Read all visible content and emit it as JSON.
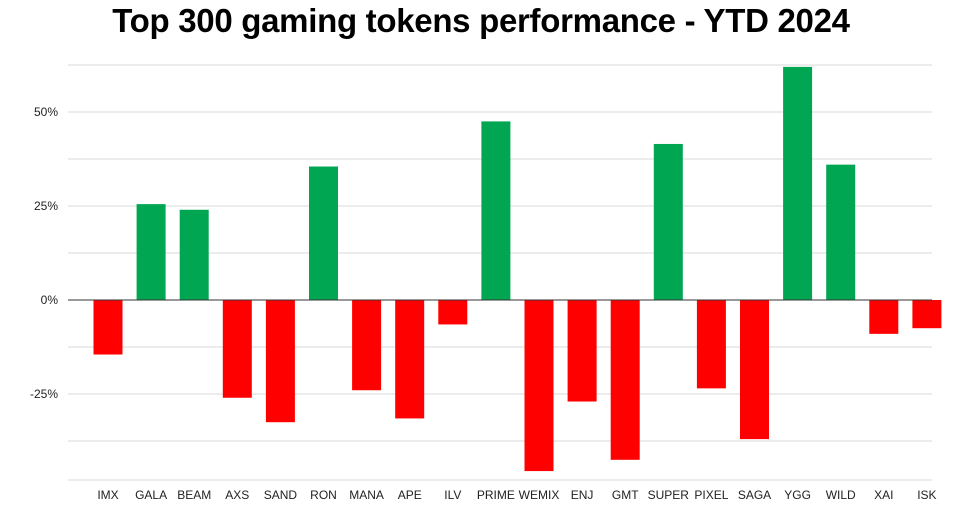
{
  "chart_data": {
    "type": "bar",
    "title": "Top 300 gaming tokens performance - YTD 2024",
    "xlabel": "",
    "ylabel": "",
    "categories": [
      "IMX",
      "GALA",
      "BEAM",
      "AXS",
      "SAND",
      "RON",
      "MANA",
      "APE",
      "ILV",
      "PRIME",
      "WEMIX",
      "ENJ",
      "GMT",
      "SUPER",
      "PIXEL",
      "SAGA",
      "YGG",
      "WILD",
      "XAI",
      "ISK"
    ],
    "values": [
      -14.5,
      25.5,
      24,
      -26,
      -32.5,
      35.5,
      -24,
      -31.5,
      -6.5,
      47.5,
      -45.5,
      -27,
      -42.5,
      41.5,
      -23.5,
      -37,
      62,
      36,
      -9,
      -7.5
    ],
    "ylim": [
      -48,
      63
    ],
    "yticks": [
      {
        "value": 50,
        "label": "50%"
      },
      {
        "value": 25,
        "label": "25%"
      },
      {
        "value": 0,
        "label": "0%"
      },
      {
        "value": -25,
        "label": "-25%"
      }
    ],
    "gridlines": [
      62.5,
      50,
      37.5,
      25,
      12.5,
      0,
      -12.5,
      -25,
      -37.5
    ],
    "grid": true,
    "legend": "none",
    "colors": {
      "positive": "#00a651",
      "negative": "#ff0000",
      "grid": "#d9d9d9",
      "zero_line": "#333333"
    }
  }
}
